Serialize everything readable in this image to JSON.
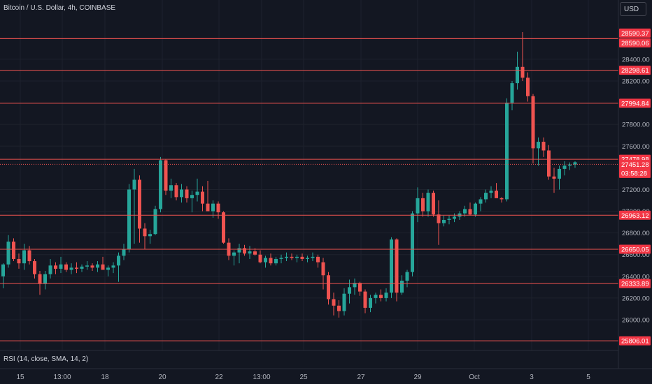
{
  "header": {
    "symbol_title": "Bitcoin / U.S. Dollar, 4h, COINBASE",
    "currency_button": "USD"
  },
  "indicator": {
    "rsi_label": "RSI (14, close, SMA, 14, 2)"
  },
  "colors": {
    "background": "#131722",
    "up": "#26a69a",
    "down": "#ef5350",
    "level_line": "#ef5350",
    "label_bg": "#f23645",
    "axis_text": "#b2b5be",
    "grid": "#1e222d"
  },
  "chart_data": {
    "type": "candlestick",
    "title": "",
    "ylim": [
      25700,
      28900
    ],
    "y_ticks": [
      "28400.00",
      "28200.00",
      "27800.00",
      "27600.00",
      "27200.00",
      "27000.00",
      "26800.00",
      "26600.00",
      "26400.00",
      "26200.00",
      "26000.00"
    ],
    "x_ticks": [
      "15",
      "13:00",
      "18",
      "20",
      "22",
      "13:00",
      "25",
      "27",
      "29",
      "Oct",
      "3",
      "5"
    ],
    "price_levels": [
      {
        "value": 28590.37,
        "label": "28590.37"
      },
      {
        "value": 28590.06,
        "label": "28590.06"
      },
      {
        "value": 28298.61,
        "label": "28298.61"
      },
      {
        "value": 27994.84,
        "label": "27994.84"
      },
      {
        "value": 27478.98,
        "label": "27478.98"
      },
      {
        "value": 26963.12,
        "label": "26963.12"
      },
      {
        "value": 26650.05,
        "label": "26650.05"
      },
      {
        "value": 26333.89,
        "label": "26333.89"
      },
      {
        "value": 25806.01,
        "label": "25806.01"
      }
    ],
    "current_price": {
      "value": 27451.28,
      "label": "27451.28",
      "countdown": "03:58:28"
    },
    "candles": [
      [
        26400,
        26520,
        26290,
        26510
      ],
      [
        26510,
        26780,
        26480,
        26720
      ],
      [
        26720,
        26750,
        26540,
        26560
      ],
      [
        26560,
        26610,
        26470,
        26520
      ],
      [
        26520,
        26700,
        26460,
        26640
      ],
      [
        26640,
        26680,
        26510,
        26540
      ],
      [
        26540,
        26560,
        26380,
        26420
      ],
      [
        26420,
        26450,
        26230,
        26330
      ],
      [
        26330,
        26450,
        26280,
        26420
      ],
      [
        26420,
        26560,
        26380,
        26500
      ],
      [
        26500,
        26530,
        26420,
        26470
      ],
      [
        26470,
        26580,
        26430,
        26510
      ],
      [
        26510,
        26530,
        26440,
        26460
      ],
      [
        26460,
        26520,
        26420,
        26480
      ],
      [
        26480,
        26530,
        26430,
        26470
      ],
      [
        26470,
        26510,
        26440,
        26490
      ],
      [
        26490,
        26540,
        26460,
        26500
      ],
      [
        26500,
        26520,
        26450,
        26480
      ],
      [
        26480,
        26540,
        26440,
        26510
      ],
      [
        26510,
        26580,
        26470,
        26460
      ],
      [
        26460,
        26500,
        26400,
        26480
      ],
      [
        26480,
        26530,
        26430,
        26500
      ],
      [
        26500,
        26620,
        26350,
        26590
      ],
      [
        26590,
        26700,
        26550,
        26650
      ],
      [
        26650,
        27250,
        26620,
        27200
      ],
      [
        27200,
        27390,
        26700,
        27290
      ],
      [
        27290,
        27330,
        26710,
        26840
      ],
      [
        26840,
        26890,
        26650,
        26770
      ],
      [
        26770,
        26830,
        26700,
        26790
      ],
      [
        26790,
        27050,
        26780,
        27020
      ],
      [
        27020,
        27500,
        26990,
        27470
      ],
      [
        27470,
        27480,
        27150,
        27190
      ],
      [
        27190,
        27300,
        27120,
        27240
      ],
      [
        27240,
        27260,
        27100,
        27130
      ],
      [
        27130,
        27250,
        27080,
        27200
      ],
      [
        27200,
        27230,
        27080,
        27120
      ],
      [
        27120,
        27190,
        26990,
        27150
      ],
      [
        27150,
        27300,
        27090,
        27180
      ],
      [
        27180,
        27230,
        27000,
        27070
      ],
      [
        27070,
        27280,
        27000,
        27000
      ],
      [
        27000,
        27100,
        26940,
        27070
      ],
      [
        27070,
        27090,
        26930,
        26990
      ],
      [
        26990,
        27000,
        26700,
        26710
      ],
      [
        26710,
        26750,
        26550,
        26590
      ],
      [
        26590,
        26640,
        26500,
        26620
      ],
      [
        26620,
        26700,
        26520,
        26660
      ],
      [
        26660,
        26690,
        26590,
        26610
      ],
      [
        26610,
        26680,
        26560,
        26630
      ],
      [
        26630,
        26660,
        26590,
        26600
      ],
      [
        26600,
        26640,
        26520,
        26530
      ],
      [
        26530,
        26590,
        26480,
        26570
      ],
      [
        26570,
        26610,
        26500,
        26520
      ],
      [
        26520,
        26580,
        26500,
        26560
      ],
      [
        26560,
        26600,
        26520,
        26570
      ],
      [
        26570,
        26620,
        26540,
        26580
      ],
      [
        26580,
        26610,
        26550,
        26570
      ],
      [
        26570,
        26600,
        26530,
        26580
      ],
      [
        26580,
        26610,
        26540,
        26560
      ],
      [
        26560,
        26590,
        26530,
        26570
      ],
      [
        26570,
        26620,
        26540,
        26580
      ],
      [
        26580,
        26600,
        26480,
        26530
      ],
      [
        26530,
        26570,
        26280,
        26410
      ],
      [
        26410,
        26440,
        26140,
        26190
      ],
      [
        26190,
        26250,
        26040,
        26130
      ],
      [
        26130,
        26180,
        26020,
        26080
      ],
      [
        26080,
        26290,
        26040,
        26240
      ],
      [
        26240,
        26370,
        26150,
        26300
      ],
      [
        26300,
        26380,
        26230,
        26340
      ],
      [
        26340,
        26350,
        26220,
        26260
      ],
      [
        26260,
        26280,
        26060,
        26110
      ],
      [
        26110,
        26230,
        26070,
        26200
      ],
      [
        26200,
        26250,
        26150,
        26230
      ],
      [
        26230,
        26280,
        26170,
        26200
      ],
      [
        26200,
        26290,
        26170,
        26250
      ],
      [
        26250,
        26760,
        26200,
        26740
      ],
      [
        26740,
        26750,
        26170,
        26250
      ],
      [
        26250,
        26410,
        26230,
        26360
      ],
      [
        26360,
        26460,
        26300,
        26440
      ],
      [
        26440,
        27000,
        26400,
        26980
      ],
      [
        26980,
        27220,
        26900,
        27120
      ],
      [
        27120,
        27170,
        26950,
        27000
      ],
      [
        27000,
        27200,
        26950,
        27170
      ],
      [
        27170,
        27190,
        26950,
        26970
      ],
      [
        26970,
        27100,
        26690,
        26890
      ],
      [
        26890,
        26960,
        26860,
        26920
      ],
      [
        26920,
        26960,
        26880,
        26930
      ],
      [
        26930,
        26980,
        26900,
        26950
      ],
      [
        26950,
        27000,
        26920,
        26980
      ],
      [
        26980,
        27050,
        26950,
        27020
      ],
      [
        27020,
        27080,
        26960,
        26970
      ],
      [
        26970,
        27080,
        26950,
        27070
      ],
      [
        27070,
        27130,
        27000,
        27110
      ],
      [
        27110,
        27200,
        27080,
        27170
      ],
      [
        27170,
        27230,
        27120,
        27190
      ],
      [
        27190,
        27260,
        27130,
        27120
      ],
      [
        27120,
        27130,
        27080,
        27110
      ],
      [
        27110,
        28040,
        27090,
        28000
      ],
      [
        28000,
        28200,
        27930,
        28180
      ],
      [
        28180,
        28470,
        28120,
        28330
      ],
      [
        28330,
        28650,
        28200,
        28230
      ],
      [
        28230,
        28280,
        28010,
        28060
      ],
      [
        28060,
        28080,
        27440,
        27580
      ],
      [
        27580,
        27680,
        27420,
        27640
      ],
      [
        27640,
        27680,
        27500,
        27560
      ],
      [
        27560,
        27610,
        27290,
        27320
      ],
      [
        27320,
        27400,
        27170,
        27300
      ],
      [
        27300,
        27420,
        27200,
        27390
      ],
      [
        27390,
        27460,
        27330,
        27420
      ],
      [
        27420,
        27450,
        27380,
        27430
      ],
      [
        27430,
        27460,
        27400,
        27451.28
      ]
    ]
  }
}
